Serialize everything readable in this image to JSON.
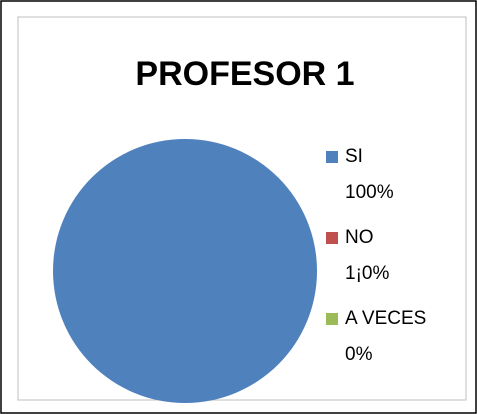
{
  "chart_data": {
    "type": "pie",
    "title": "PROFESOR 1",
    "categories": [
      "SI",
      "NO",
      "A VECES"
    ],
    "values": [
      100,
      0,
      0
    ],
    "value_labels": [
      "100%",
      "1¡0%",
      "0%"
    ],
    "colors": [
      "#4f81bd",
      "#c0504d",
      "#9bbb59"
    ],
    "legend": "right"
  }
}
